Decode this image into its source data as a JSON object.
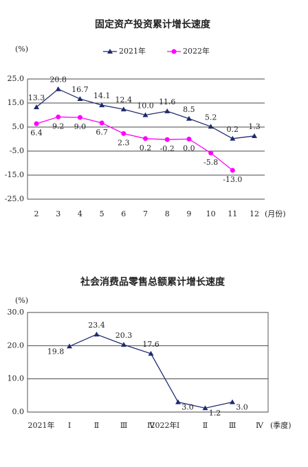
{
  "chart_data": [
    {
      "type": "line",
      "title": "固定资产投资累计增长速度",
      "y_label": "(%)",
      "x_label": "(月份)",
      "categories": [
        "2",
        "3",
        "4",
        "5",
        "6",
        "7",
        "8",
        "9",
        "10",
        "11",
        "12"
      ],
      "series": [
        {
          "name": "2021年",
          "color": "#1f2a6e",
          "values": [
            13.3,
            20.8,
            16.7,
            14.1,
            12.4,
            10.0,
            11.6,
            8.5,
            5.2,
            0.2,
            1.3
          ],
          "value_labels": [
            "13.3",
            "20.8",
            "16.7",
            "14.1",
            "12.4",
            "10.0",
            "11.6",
            "8.5",
            "5.2",
            "0.2",
            "1.3"
          ]
        },
        {
          "name": "2022年",
          "color": "#ff00ff",
          "values": [
            6.4,
            9.2,
            9.0,
            6.7,
            2.3,
            0.2,
            -0.2,
            0.0,
            -5.8,
            -13.0,
            null
          ],
          "value_labels": [
            "6.4",
            "9.2",
            "9.0",
            "6.7",
            "2.3",
            "0.2",
            "-0.2",
            "0.0",
            "-5.8",
            "-13.0",
            null
          ]
        }
      ],
      "ylim": [
        -25,
        25
      ],
      "yticks": [
        {
          "value": 25,
          "label": "25.0"
        },
        {
          "value": 15,
          "label": "15.0"
        },
        {
          "value": 5,
          "label": "5.0"
        },
        {
          "value": -5,
          "label": "-5.0"
        },
        {
          "value": -15,
          "label": "-15.0"
        },
        {
          "value": -25,
          "label": "-25.0"
        }
      ],
      "grid": true,
      "legend": "top"
    },
    {
      "type": "line",
      "title": "社会消费品零售总额累计增长速度",
      "y_label": "(%)",
      "x_label": "(季度)",
      "annotations": [
        "2021年",
        "2022年"
      ],
      "categories": [
        "Ⅰ",
        "Ⅱ",
        "Ⅲ",
        "Ⅳ",
        "Ⅰ",
        "Ⅱ",
        "Ⅲ",
        "Ⅳ"
      ],
      "series": [
        {
          "color": "#1f2a6e",
          "values": [
            19.8,
            23.4,
            20.3,
            17.6,
            3.0,
            1.2,
            3.0,
            null
          ],
          "value_labels": [
            "19.8",
            "23.4",
            "20.3",
            "17.6",
            "3.0",
            "1.2",
            "3.0",
            null
          ]
        }
      ],
      "ylim": [
        0,
        30
      ],
      "yticks": [
        {
          "value": 0,
          "label": "0.0"
        },
        {
          "value": 10,
          "label": "10.0"
        },
        {
          "value": 20,
          "label": "20.0"
        },
        {
          "value": 30,
          "label": "30.0"
        }
      ],
      "grid": true
    }
  ]
}
